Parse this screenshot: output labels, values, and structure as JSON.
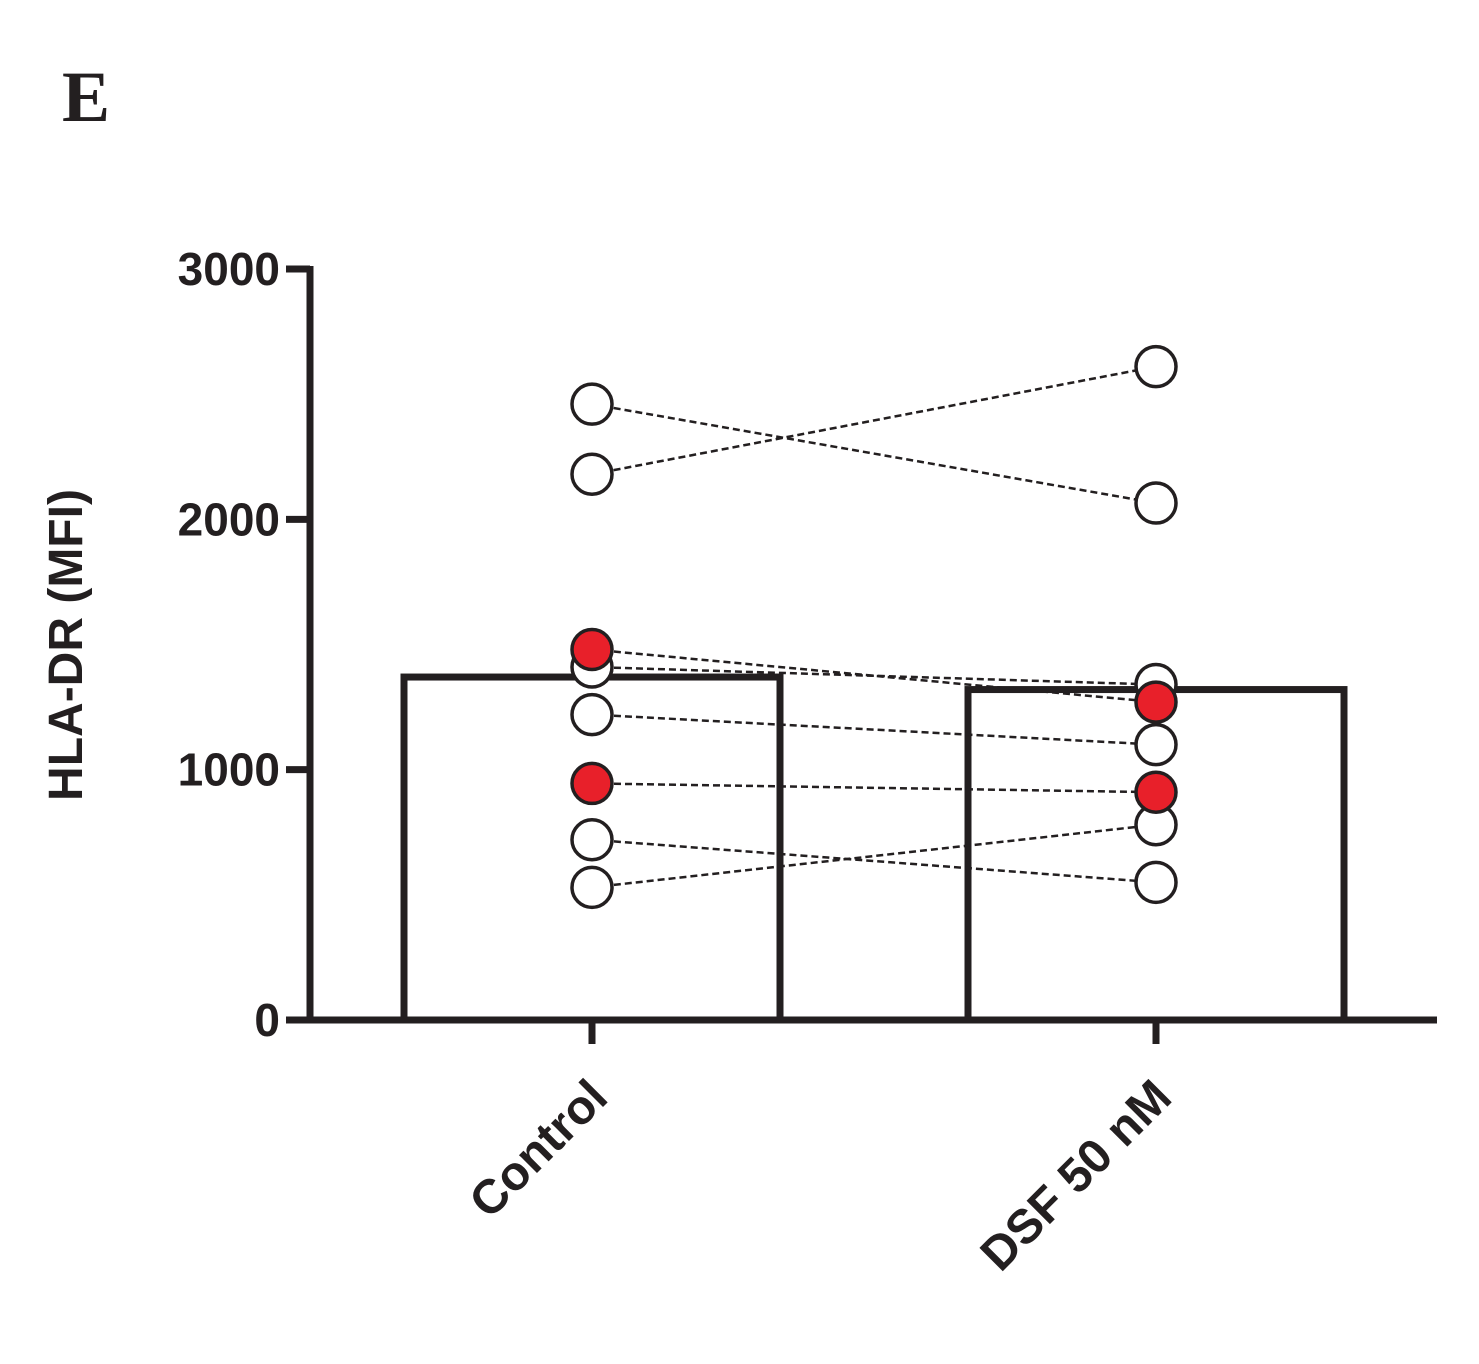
{
  "chart_data": {
    "type": "bar",
    "panel_label": "E",
    "y_label": "HLA-DR (MFI)",
    "categories": [
      "Control",
      "DSF 50 nM"
    ],
    "values": [
      1370,
      1320
    ],
    "color": "#ffffff",
    "ylim": [
      0,
      3000
    ],
    "yticks": [
      0,
      1000,
      2000,
      3000
    ],
    "pairs": [
      {
        "values": [
          2460,
          2065
        ],
        "color": "#ffffff"
      },
      {
        "values": [
          2180,
          2610
        ],
        "color": "#ffffff"
      },
      {
        "values": [
          1480,
          1270
        ],
        "color": "#e8202a"
      },
      {
        "values": [
          1410,
          1340
        ],
        "color": "#ffffff"
      },
      {
        "values": [
          1220,
          1100
        ],
        "color": "#ffffff"
      },
      {
        "values": [
          945,
          910
        ],
        "color": "#e8202a"
      },
      {
        "values": [
          720,
          550
        ],
        "color": "#ffffff"
      },
      {
        "values": [
          530,
          780
        ],
        "color": "#ffffff"
      }
    ]
  }
}
